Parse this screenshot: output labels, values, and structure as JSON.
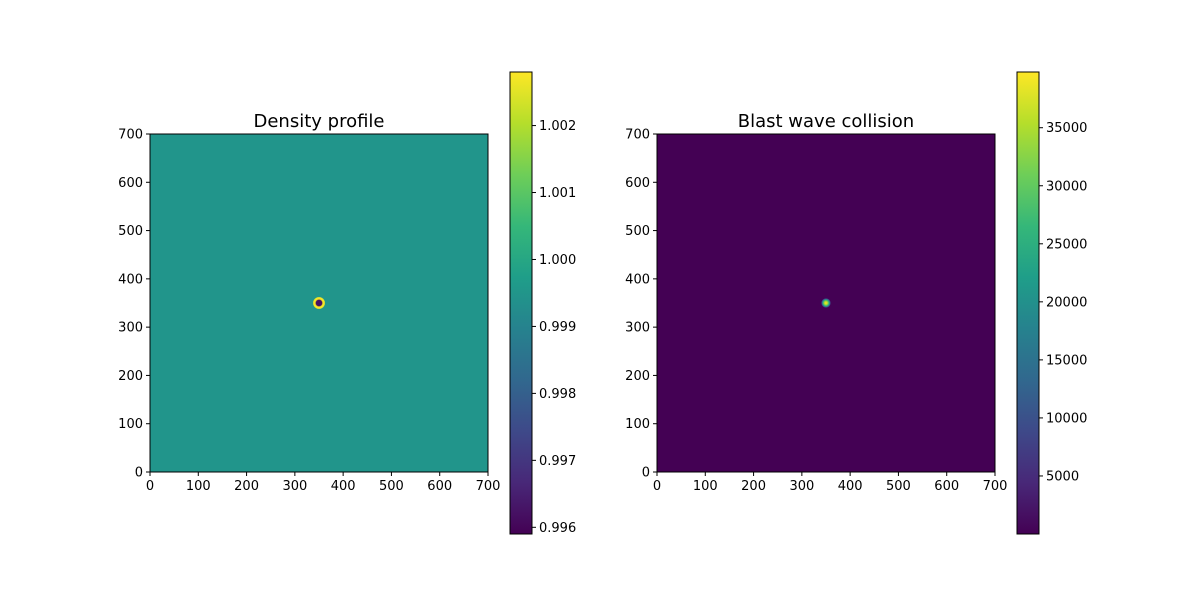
{
  "chart_data": [
    {
      "type": "heatmap",
      "title": "Density profile",
      "xlabel": "",
      "ylabel": "",
      "xlim": [
        0,
        700
      ],
      "ylim": [
        0,
        700
      ],
      "xticks": [
        0,
        100,
        200,
        300,
        400,
        500,
        600,
        700
      ],
      "yticks": [
        0,
        100,
        200,
        300,
        400,
        500,
        600,
        700
      ],
      "colormap": "viridis",
      "background_value": 0.9995,
      "feature": {
        "center": [
          350,
          350
        ],
        "inner_value": 0.9962,
        "inner_radius": 6,
        "ring_value": 1.0027,
        "ring_inner_radius": 8,
        "ring_outer_radius": 13
      },
      "colorbar": {
        "vmin": 0.9959,
        "vmax": 1.0028,
        "ticks": [
          0.996,
          0.997,
          0.998,
          0.999,
          1.0,
          1.001,
          1.002
        ],
        "tick_labels": [
          "0.996",
          "0.997",
          "0.998",
          "0.999",
          "1.000",
          "1.001",
          "1.002"
        ]
      }
    },
    {
      "type": "heatmap",
      "title": "Blast wave collision",
      "xlabel": "",
      "ylabel": "",
      "xlim": [
        0,
        700
      ],
      "ylim": [
        0,
        700
      ],
      "xticks": [
        0,
        100,
        200,
        300,
        400,
        500,
        600,
        700
      ],
      "yticks": [
        0,
        100,
        200,
        300,
        400,
        500,
        600,
        700
      ],
      "colormap": "viridis",
      "background_value": 0,
      "feature": {
        "center": [
          350,
          350
        ],
        "peak_value": 39800,
        "radius": 10
      },
      "colorbar": {
        "vmin": 0,
        "vmax": 39800,
        "ticks": [
          5000,
          10000,
          15000,
          20000,
          25000,
          30000,
          35000
        ],
        "tick_labels": [
          "5000",
          "10000",
          "15000",
          "20000",
          "25000",
          "30000",
          "35000"
        ]
      }
    }
  ],
  "colors": {
    "viridis_stops": [
      "#440154",
      "#482878",
      "#3e4989",
      "#31688e",
      "#26828e",
      "#1f9e89",
      "#35b779",
      "#6ece58",
      "#b5de2b",
      "#fde725"
    ]
  }
}
